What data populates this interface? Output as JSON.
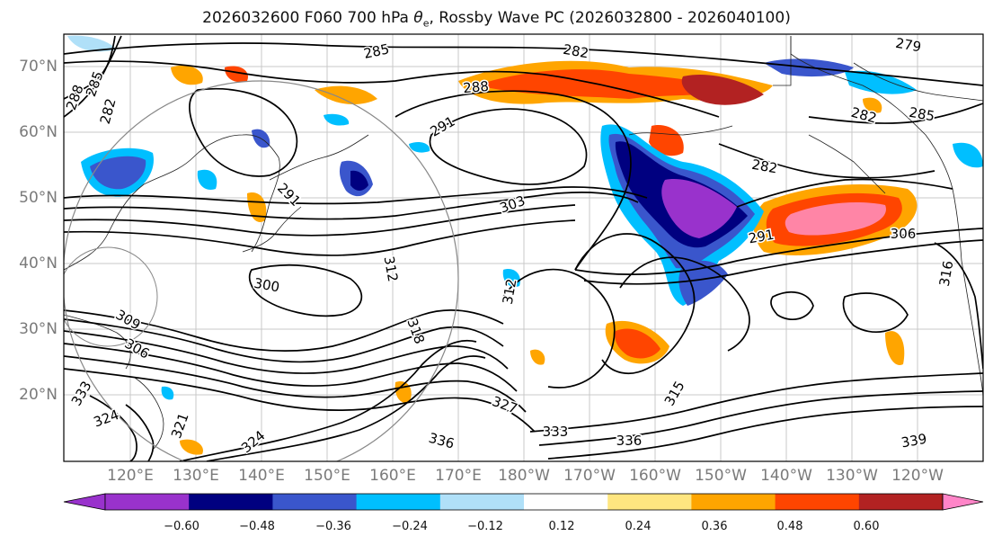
{
  "title": {
    "prefix": "2026032600 F060 700 hPa ",
    "theta": "θ",
    "theta_sub": "e",
    "suffix": ", Rossby Wave PC (2026032800 - 2026040100)"
  },
  "map": {
    "lat_labels": [
      "70°N",
      "60°N",
      "50°N",
      "40°N",
      "30°N",
      "20°N"
    ],
    "lon_labels": [
      "120°E",
      "130°E",
      "140°E",
      "150°E",
      "160°E",
      "170°E",
      "180°W",
      "170°W",
      "160°W",
      "150°W",
      "140°W",
      "130°W",
      "120°W"
    ],
    "contour_labels": [
      "285",
      "282",
      "279",
      "288",
      "291",
      "288",
      "285",
      "282",
      "291",
      "282",
      "285",
      "282",
      "291",
      "303",
      "291",
      "306",
      "300",
      "312",
      "312",
      "316",
      "309",
      "306",
      "318",
      "333",
      "327",
      "324",
      "321",
      "324",
      "336",
      "333",
      "336",
      "339",
      "315"
    ]
  },
  "colorbar": {
    "ticks": [
      "−0.60",
      "−0.48",
      "−0.36",
      "−0.24",
      "−0.12",
      "0.12",
      "0.24",
      "0.36",
      "0.48",
      "0.60"
    ],
    "colors": [
      "#9932cc",
      "#000080",
      "#3a56cc",
      "#00bfff",
      "#b0e0f8",
      "#ffffff",
      "#ffe680",
      "#ffa500",
      "#ff4500",
      "#b22222",
      "#ff85a6",
      "#ff85c8"
    ]
  }
}
